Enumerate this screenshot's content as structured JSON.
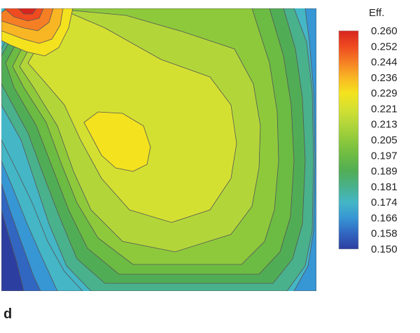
{
  "chart_data": {
    "type": "heatmap",
    "panel_label": "d",
    "colorbar": {
      "title": "Eff.",
      "ticks": [
        "0.260",
        "0.252",
        "0.244",
        "0.236",
        "0.229",
        "0.221",
        "0.213",
        "0.205",
        "0.197",
        "0.189",
        "0.181",
        "0.174",
        "0.166",
        "0.158",
        "0.150"
      ],
      "range": [
        0.15,
        0.26
      ],
      "colors": [
        "#d7261e",
        "#ef4a20",
        "#f57f24",
        "#f9b624",
        "#f4e21e",
        "#d4e031",
        "#b2d63a",
        "#8ec93c",
        "#6cbb43",
        "#51ad55",
        "#49b18c",
        "#44b6c6",
        "#3796d4",
        "#3166c1",
        "#2c3ea0"
      ]
    },
    "grid": false,
    "legend_position": "right"
  }
}
